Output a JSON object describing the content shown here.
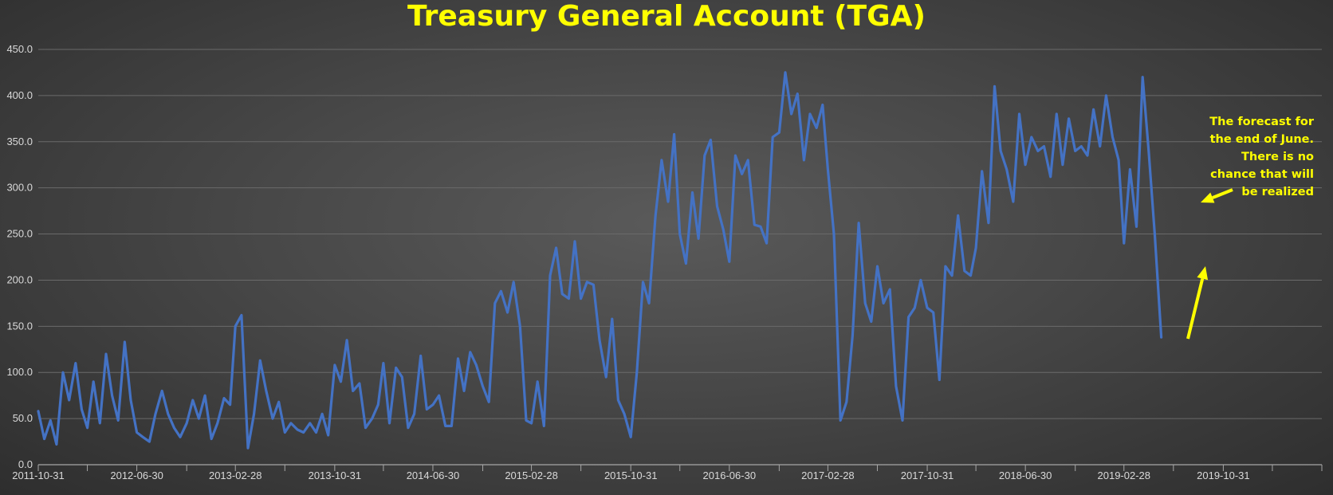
{
  "chart_data": {
    "type": "line",
    "title": "Treasury General Account (TGA)",
    "xlabel": "",
    "ylabel": "",
    "ylim": [
      0,
      450
    ],
    "yticks": [
      "0.0",
      "50.0",
      "100.0",
      "150.0",
      "200.0",
      "250.0",
      "300.0",
      "350.0",
      "400.0",
      "450.0"
    ],
    "x_range": [
      "2011-10-31",
      "2020-06-30"
    ],
    "x_tick_labels": [
      "2011-10-31",
      "2012-06-30",
      "2013-02-28",
      "2013-10-31",
      "2014-06-30",
      "2015-02-28",
      "2015-10-31",
      "2016-06-30",
      "2017-02-28",
      "2017-10-31",
      "2018-06-30",
      "2019-02-28",
      "2019-10-31"
    ],
    "grid": "horizontal",
    "legend": "none",
    "series": [
      {
        "color": "#4472c4",
        "points": [
          [
            "2011-10-31",
            58
          ],
          [
            "2011-11-15",
            28
          ],
          [
            "2011-11-30",
            48
          ],
          [
            "2011-12-15",
            22
          ],
          [
            "2011-12-31",
            100
          ],
          [
            "2012-01-15",
            70
          ],
          [
            "2012-01-31",
            110
          ],
          [
            "2012-02-15",
            60
          ],
          [
            "2012-02-29",
            40
          ],
          [
            "2012-03-15",
            90
          ],
          [
            "2012-03-31",
            45
          ],
          [
            "2012-04-15",
            120
          ],
          [
            "2012-04-30",
            75
          ],
          [
            "2012-05-15",
            48
          ],
          [
            "2012-05-31",
            133
          ],
          [
            "2012-06-15",
            70
          ],
          [
            "2012-06-30",
            35
          ],
          [
            "2012-07-15",
            30
          ],
          [
            "2012-07-31",
            25
          ],
          [
            "2012-08-15",
            55
          ],
          [
            "2012-08-31",
            80
          ],
          [
            "2012-09-15",
            55
          ],
          [
            "2012-09-30",
            40
          ],
          [
            "2012-10-15",
            30
          ],
          [
            "2012-10-31",
            45
          ],
          [
            "2012-11-15",
            70
          ],
          [
            "2012-11-30",
            50
          ],
          [
            "2012-12-15",
            75
          ],
          [
            "2012-12-31",
            28
          ],
          [
            "2013-01-15",
            45
          ],
          [
            "2013-01-31",
            72
          ],
          [
            "2013-02-15",
            65
          ],
          [
            "2013-02-28",
            150
          ],
          [
            "2013-03-15",
            162
          ],
          [
            "2013-03-31",
            18
          ],
          [
            "2013-04-15",
            55
          ],
          [
            "2013-04-30",
            113
          ],
          [
            "2013-05-15",
            80
          ],
          [
            "2013-05-31",
            50
          ],
          [
            "2013-06-15",
            68
          ],
          [
            "2013-06-30",
            35
          ],
          [
            "2013-07-15",
            45
          ],
          [
            "2013-07-31",
            38
          ],
          [
            "2013-08-15",
            35
          ],
          [
            "2013-08-31",
            45
          ],
          [
            "2013-09-15",
            35
          ],
          [
            "2013-09-30",
            55
          ],
          [
            "2013-10-15",
            32
          ],
          [
            "2013-10-31",
            108
          ],
          [
            "2013-11-15",
            90
          ],
          [
            "2013-11-30",
            135
          ],
          [
            "2013-12-15",
            80
          ],
          [
            "2013-12-31",
            88
          ],
          [
            "2014-01-15",
            40
          ],
          [
            "2014-01-31",
            50
          ],
          [
            "2014-02-15",
            65
          ],
          [
            "2014-02-28",
            110
          ],
          [
            "2014-03-15",
            45
          ],
          [
            "2014-03-31",
            105
          ],
          [
            "2014-04-15",
            95
          ],
          [
            "2014-04-30",
            40
          ],
          [
            "2014-05-15",
            55
          ],
          [
            "2014-05-31",
            118
          ],
          [
            "2014-06-15",
            60
          ],
          [
            "2014-06-30",
            65
          ],
          [
            "2014-07-15",
            75
          ],
          [
            "2014-07-31",
            42
          ],
          [
            "2014-08-15",
            42
          ],
          [
            "2014-08-31",
            115
          ],
          [
            "2014-09-15",
            80
          ],
          [
            "2014-09-30",
            122
          ],
          [
            "2014-10-15",
            108
          ],
          [
            "2014-10-31",
            85
          ],
          [
            "2014-11-15",
            68
          ],
          [
            "2014-11-30",
            175
          ],
          [
            "2014-12-15",
            188
          ],
          [
            "2014-12-31",
            165
          ],
          [
            "2015-01-15",
            198
          ],
          [
            "2015-01-31",
            150
          ],
          [
            "2015-02-15",
            48
          ],
          [
            "2015-02-28",
            45
          ],
          [
            "2015-03-15",
            90
          ],
          [
            "2015-03-31",
            42
          ],
          [
            "2015-04-15",
            205
          ],
          [
            "2015-04-30",
            235
          ],
          [
            "2015-05-15",
            185
          ],
          [
            "2015-05-31",
            180
          ],
          [
            "2015-06-15",
            242
          ],
          [
            "2015-06-30",
            180
          ],
          [
            "2015-07-15",
            198
          ],
          [
            "2015-07-31",
            195
          ],
          [
            "2015-08-15",
            135
          ],
          [
            "2015-08-31",
            95
          ],
          [
            "2015-09-15",
            158
          ],
          [
            "2015-09-30",
            70
          ],
          [
            "2015-10-15",
            55
          ],
          [
            "2015-10-31",
            30
          ],
          [
            "2015-11-15",
            100
          ],
          [
            "2015-11-30",
            198
          ],
          [
            "2015-12-15",
            175
          ],
          [
            "2015-12-31",
            270
          ],
          [
            "2016-01-15",
            330
          ],
          [
            "2016-01-31",
            285
          ],
          [
            "2016-02-15",
            358
          ],
          [
            "2016-02-29",
            250
          ],
          [
            "2016-03-15",
            218
          ],
          [
            "2016-03-31",
            295
          ],
          [
            "2016-04-15",
            245
          ],
          [
            "2016-04-30",
            335
          ],
          [
            "2016-05-15",
            352
          ],
          [
            "2016-05-31",
            280
          ],
          [
            "2016-06-15",
            255
          ],
          [
            "2016-06-30",
            220
          ],
          [
            "2016-07-15",
            335
          ],
          [
            "2016-07-31",
            315
          ],
          [
            "2016-08-15",
            330
          ],
          [
            "2016-08-31",
            260
          ],
          [
            "2016-09-15",
            258
          ],
          [
            "2016-09-30",
            240
          ],
          [
            "2016-10-15",
            355
          ],
          [
            "2016-10-31",
            360
          ],
          [
            "2016-11-15",
            425
          ],
          [
            "2016-11-30",
            380
          ],
          [
            "2016-12-15",
            402
          ],
          [
            "2016-12-31",
            330
          ],
          [
            "2017-01-15",
            380
          ],
          [
            "2017-01-31",
            365
          ],
          [
            "2017-02-15",
            390
          ],
          [
            "2017-02-28",
            320
          ],
          [
            "2017-03-15",
            250
          ],
          [
            "2017-03-31",
            48
          ],
          [
            "2017-04-15",
            68
          ],
          [
            "2017-04-30",
            140
          ],
          [
            "2017-05-15",
            262
          ],
          [
            "2017-05-31",
            175
          ],
          [
            "2017-06-15",
            155
          ],
          [
            "2017-06-30",
            215
          ],
          [
            "2017-07-15",
            175
          ],
          [
            "2017-07-31",
            190
          ],
          [
            "2017-08-15",
            85
          ],
          [
            "2017-08-31",
            48
          ],
          [
            "2017-09-15",
            160
          ],
          [
            "2017-09-30",
            170
          ],
          [
            "2017-10-15",
            200
          ],
          [
            "2017-10-31",
            170
          ],
          [
            "2017-11-15",
            165
          ],
          [
            "2017-11-30",
            92
          ],
          [
            "2017-12-15",
            215
          ],
          [
            "2017-12-31",
            205
          ],
          [
            "2018-01-15",
            270
          ],
          [
            "2018-01-31",
            210
          ],
          [
            "2018-02-15",
            205
          ],
          [
            "2018-02-28",
            235
          ],
          [
            "2018-03-15",
            318
          ],
          [
            "2018-03-31",
            262
          ],
          [
            "2018-04-15",
            410
          ],
          [
            "2018-04-30",
            340
          ],
          [
            "2018-05-15",
            320
          ],
          [
            "2018-05-31",
            285
          ],
          [
            "2018-06-15",
            380
          ],
          [
            "2018-06-30",
            325
          ],
          [
            "2018-07-15",
            355
          ],
          [
            "2018-07-31",
            340
          ],
          [
            "2018-08-15",
            345
          ],
          [
            "2018-08-31",
            312
          ],
          [
            "2018-09-15",
            380
          ],
          [
            "2018-09-30",
            325
          ],
          [
            "2018-10-15",
            375
          ],
          [
            "2018-10-31",
            340
          ],
          [
            "2018-11-15",
            345
          ],
          [
            "2018-11-30",
            335
          ],
          [
            "2018-12-15",
            385
          ],
          [
            "2018-12-31",
            345
          ],
          [
            "2019-01-15",
            400
          ],
          [
            "2019-01-31",
            355
          ],
          [
            "2019-02-15",
            330
          ],
          [
            "2019-02-28",
            240
          ],
          [
            "2019-03-15",
            320
          ],
          [
            "2019-03-31",
            258
          ],
          [
            "2019-04-15",
            420
          ],
          [
            "2019-04-30",
            340
          ],
          [
            "2019-05-15",
            250
          ],
          [
            "2019-05-31",
            138
          ]
        ]
      }
    ],
    "annotation": {
      "lines": [
        "The forecast for",
        "the end of June.",
        "There is no",
        "chance that will",
        "be realized"
      ]
    },
    "colors": {
      "title": "#ffff00",
      "line": "#4472c4",
      "annotation": "#ffff00",
      "arrow": "#ffff00",
      "grid": "#6a6a6a",
      "tick_text": "#d9d9d9"
    }
  }
}
